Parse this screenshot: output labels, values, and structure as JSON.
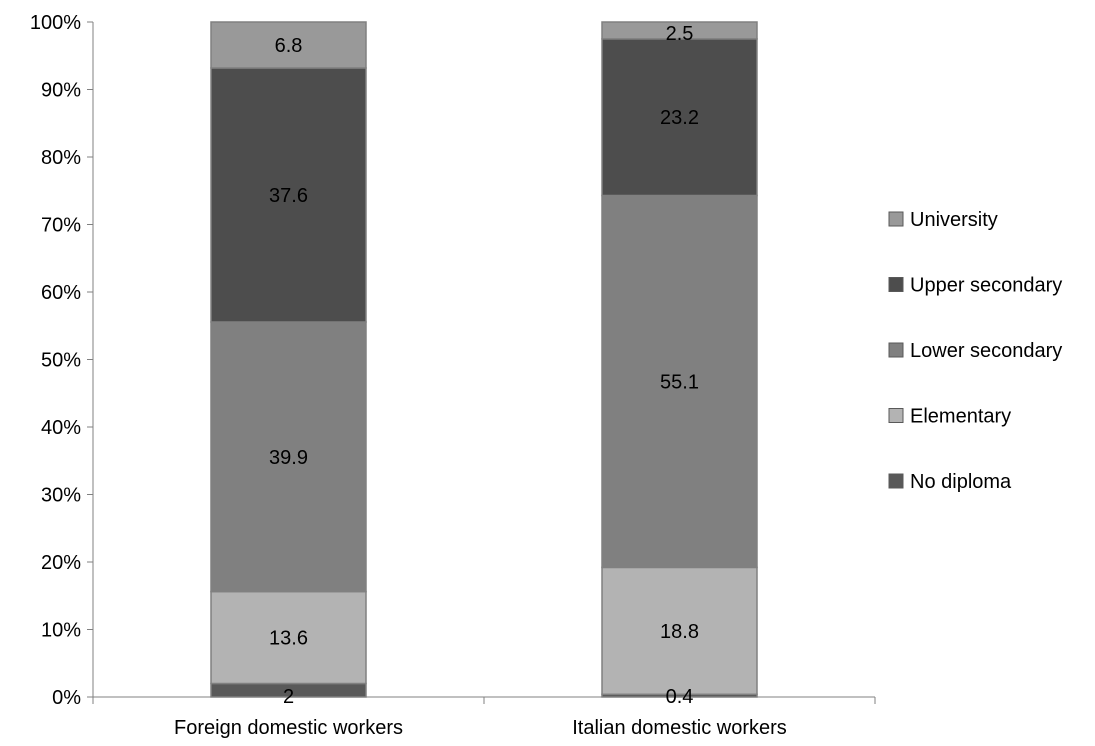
{
  "chart_data": {
    "type": "bar",
    "stacked": true,
    "normalized_percent": true,
    "categories": [
      "Foreign domestic workers",
      "Italian domestic workers"
    ],
    "series": [
      {
        "name": "No diploma",
        "values": [
          2,
          0.4
        ],
        "color": "#595959"
      },
      {
        "name": "Elementary",
        "values": [
          13.6,
          18.8
        ],
        "color": "#b3b3b3"
      },
      {
        "name": "Lower secondary",
        "values": [
          39.9,
          55.1
        ],
        "color": "#808080"
      },
      {
        "name": "Upper secondary",
        "values": [
          37.6,
          23.2
        ],
        "color": "#4d4d4d"
      },
      {
        "name": "University",
        "values": [
          6.8,
          2.5
        ],
        "color": "#999999"
      }
    ],
    "data_labels": [
      [
        "2",
        "0.4"
      ],
      [
        "13.6",
        "18.8"
      ],
      [
        "39.9",
        "55.1"
      ],
      [
        "37.6",
        "23.2"
      ],
      [
        "6.8",
        "2.5"
      ]
    ],
    "y_ticks": [
      "0%",
      "10%",
      "20%",
      "30%",
      "40%",
      "50%",
      "60%",
      "70%",
      "80%",
      "90%",
      "100%"
    ],
    "ylim": [
      0,
      100
    ],
    "grid": false,
    "legend_position": "right",
    "legend_order": [
      "University",
      "Upper secondary",
      "Lower secondary",
      "Elementary",
      "No diploma"
    ],
    "title": "",
    "xlabel": "",
    "ylabel": ""
  }
}
